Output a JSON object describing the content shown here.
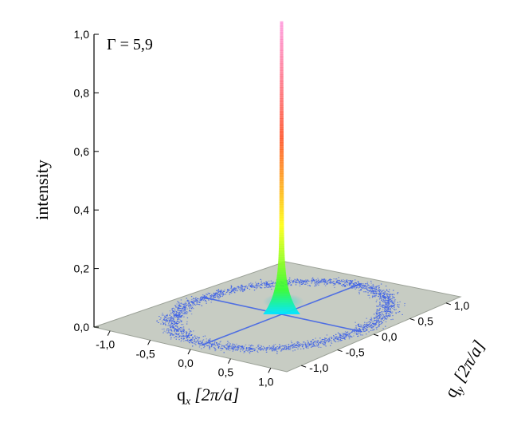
{
  "chart_data": {
    "type": "surface3d",
    "annotation": "Γ = 5,9",
    "z_axis": {
      "label": "intensity",
      "range": [
        0.0,
        1.0
      ],
      "ticks": [
        "0,0",
        "0,2",
        "0,4",
        "0,6",
        "0,8",
        "1,0"
      ]
    },
    "x_axis": {
      "label_main": "q",
      "label_sub": "x",
      "label_unit": "[2π/a]",
      "range": [
        -1.2,
        1.2
      ],
      "ticks": [
        "-1,0",
        "-0,5",
        "0,0",
        "0,5",
        "1,0"
      ]
    },
    "y_axis": {
      "label_main": "q",
      "label_sub": "y",
      "label_unit": "[2π/a]",
      "range": [
        -1.2,
        1.2
      ],
      "ticks": [
        "-1,0",
        "-0,5",
        "0,0",
        "0,5",
        "1,0"
      ]
    },
    "peak": {
      "qx": 0.0,
      "qy": 0.0,
      "intensity": 1.0
    },
    "ring": {
      "radius": 1.0,
      "intensity": 0.02
    },
    "colors": {
      "plane": "#c7ccc3",
      "ring": "#3a5ee8",
      "peak_low": "#00e6ff",
      "peak_mid1": "#33ff33",
      "peak_mid2": "#ffff00",
      "peak_high": "#ff3300",
      "peak_top": "#ff66cc"
    }
  }
}
